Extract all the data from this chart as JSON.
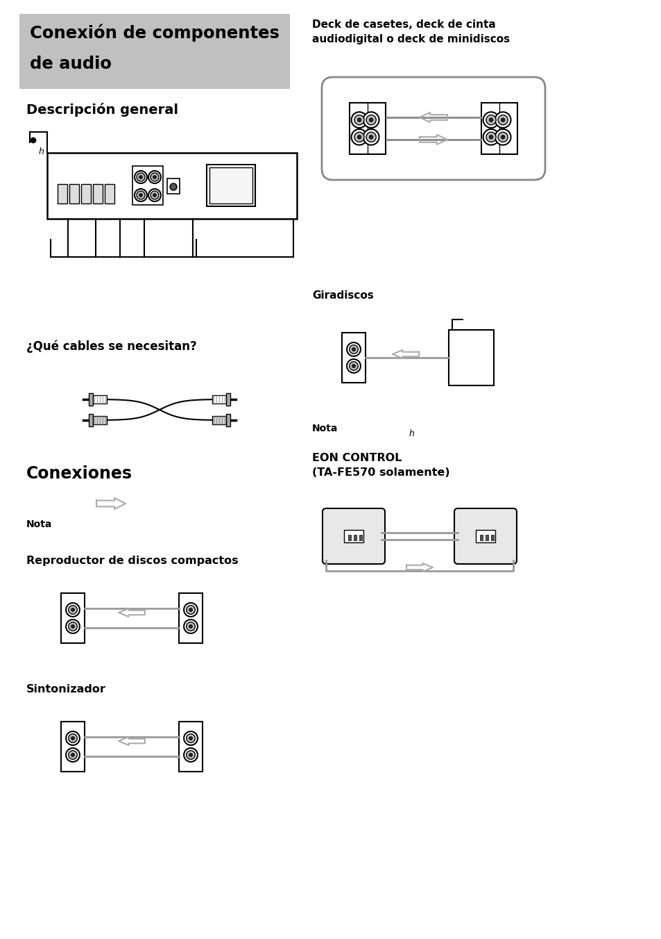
{
  "bg_color": "#ffffff",
  "title_box_color": "#c0c0c0",
  "title_text_line1": "Conexión de componentes",
  "title_text_line2": "de audio",
  "sec_descripcion": "Descripción general",
  "sec_cables": "¿Qué cables se necesitan?",
  "sec_conexiones": "Conexiones",
  "sec_nota": "Nota",
  "sec_reproduct": "Reproductor de discos compactos",
  "sec_sintoniz": "Sintonizador",
  "right_deck_title": "Deck de casetes, deck de cinta\naudiodigital o deck de minidiscos",
  "right_giradiscos": "Giradiscos",
  "right_nota": "Nota",
  "right_eon": "EON CONTROL\n(TA-FE570 solamente)"
}
